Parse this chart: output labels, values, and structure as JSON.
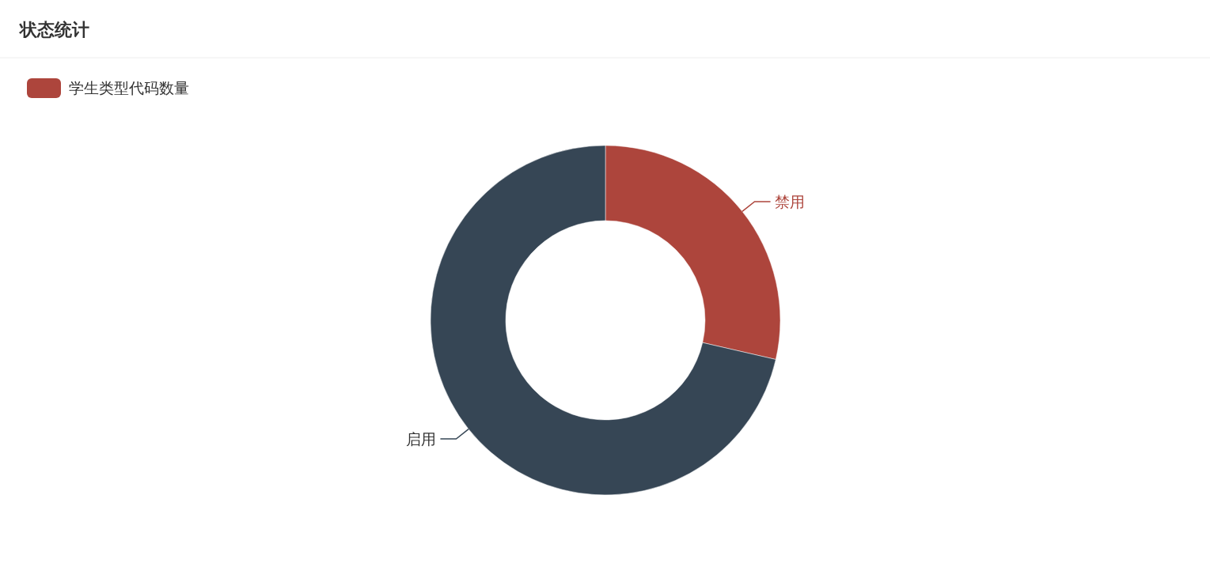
{
  "chart_data": {
    "type": "donut",
    "title": "状态统计",
    "legend": "top left",
    "categories": [
      "禁用",
      "启用"
    ],
    "colors": [
      "#ad453c",
      "#364655"
    ],
    "series": [
      {
        "name": "学生类型代码数量",
        "color": "#ad453c",
        "values": [
          28.6,
          71.4
        ]
      }
    ]
  }
}
